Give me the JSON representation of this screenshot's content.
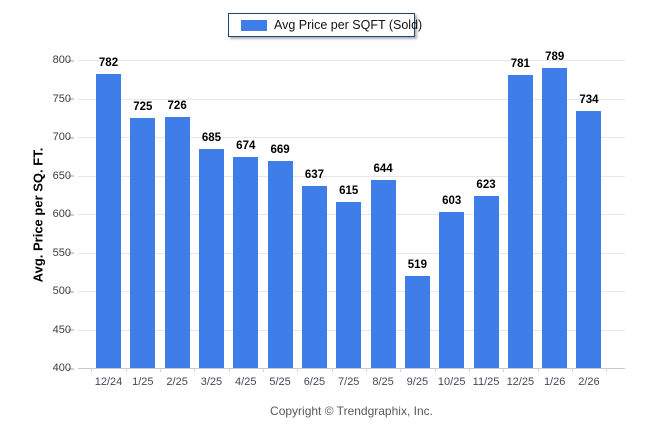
{
  "legend": {
    "label": "Avg Price per SQFT (Sold)",
    "swatch_color": "#3f7ee8",
    "border_color": "#24456a"
  },
  "footer": {
    "copyright": "Copyright © Trendgraphix, Inc."
  },
  "chart_data": {
    "type": "bar",
    "title": "Avg Price per SQFT (Sold)",
    "categories": [
      "12/24",
      "1/25",
      "2/25",
      "3/25",
      "4/25",
      "5/25",
      "6/25",
      "7/25",
      "8/25",
      "9/25",
      "10/25",
      "11/25",
      "12/25",
      "1/26",
      "2/26"
    ],
    "values": [
      782,
      725,
      726,
      685,
      674,
      669,
      637,
      615,
      644,
      519,
      603,
      623,
      781,
      789,
      734
    ],
    "xlabel": "",
    "ylabel": "Avg. Price per SQ. FT.",
    "ylim": [
      400,
      800
    ],
    "ytick_step": 50,
    "grid": true,
    "legend_position": "top-center",
    "value_labels": true,
    "bar_color": "#3f7ee8"
  }
}
